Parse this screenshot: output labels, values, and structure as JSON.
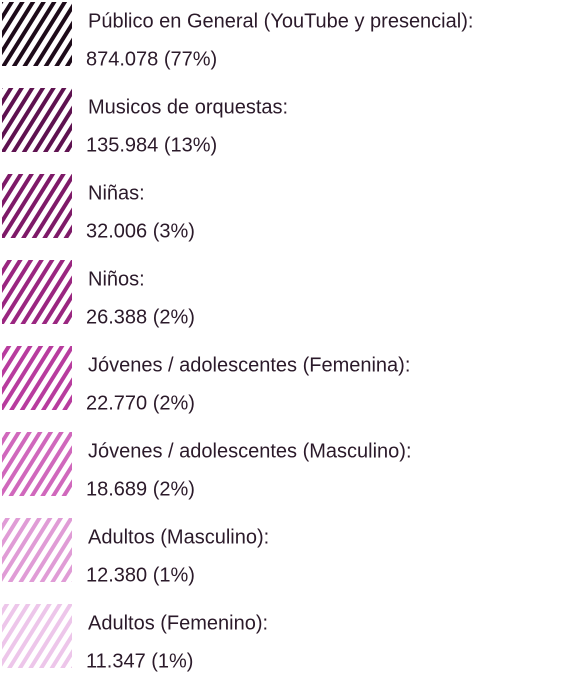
{
  "items": [
    {
      "label": "Público en General (YouTube y presencial):",
      "value": "874.078 (77%)",
      "color": "#1e0b1a"
    },
    {
      "label": "Musicos de orquestas:",
      "value": "135.984 (13%)",
      "color": "#5e1250"
    },
    {
      "label": "Niñas:",
      "value": "32.006 (3%)",
      "color": "#7e1a68"
    },
    {
      "label": "Niños:",
      "value": "26.388 (2%)",
      "color": "#9a2680"
    },
    {
      "label": "Jóvenes / adolescentes (Femenina):",
      "value": "22.770 (2%)",
      "color": "#b83c9e"
    },
    {
      "label": "Jóvenes / adolescentes (Masculino):",
      "value": "18.689 (2%)",
      "color": "#d068bc"
    },
    {
      "label": "Adultos (Masculino):",
      "value": "12.380 (1%)",
      "color": "#e09cd6"
    },
    {
      "label": "Adultos (Femenino):",
      "value": "11.347 (1%)",
      "color": "#edc6ea"
    }
  ]
}
